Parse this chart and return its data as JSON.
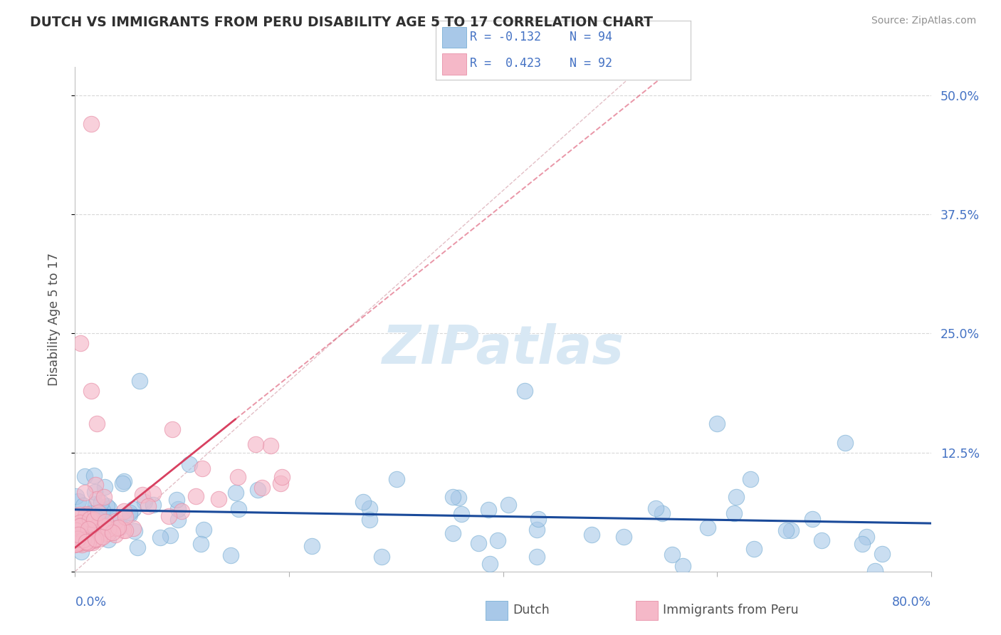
{
  "title": "DUTCH VS IMMIGRANTS FROM PERU DISABILITY AGE 5 TO 17 CORRELATION CHART",
  "source": "Source: ZipAtlas.com",
  "ylabel": "Disability Age 5 to 17",
  "legend_blue_r": "R = -0.132",
  "legend_blue_n": "N = 94",
  "legend_pink_r": "R =  0.423",
  "legend_pink_n": "N = 92",
  "legend_label_blue": "Dutch",
  "legend_label_pink": "Immigrants from Peru",
  "xlim": [
    0.0,
    0.8
  ],
  "ylim": [
    0.0,
    0.53
  ],
  "ytick_vals": [
    0.0,
    0.125,
    0.25,
    0.375,
    0.5
  ],
  "ytick_labels_right": [
    "",
    "12.5%",
    "25.0%",
    "37.5%",
    "50.0%"
  ],
  "bg_color": "#ffffff",
  "blue_scatter_fc": "#a8c8e8",
  "blue_scatter_ec": "#7aafd4",
  "pink_scatter_fc": "#f5b8c8",
  "pink_scatter_ec": "#e890a8",
  "blue_line_color": "#1a4a9a",
  "pink_line_color": "#d84060",
  "diag_color": "#e0b8c0",
  "grid_color": "#d8d8d8",
  "watermark_color": "#d8e8f4",
  "tick_label_color": "#4472c4",
  "title_color": "#303030",
  "ylabel_color": "#505050",
  "source_color": "#909090"
}
